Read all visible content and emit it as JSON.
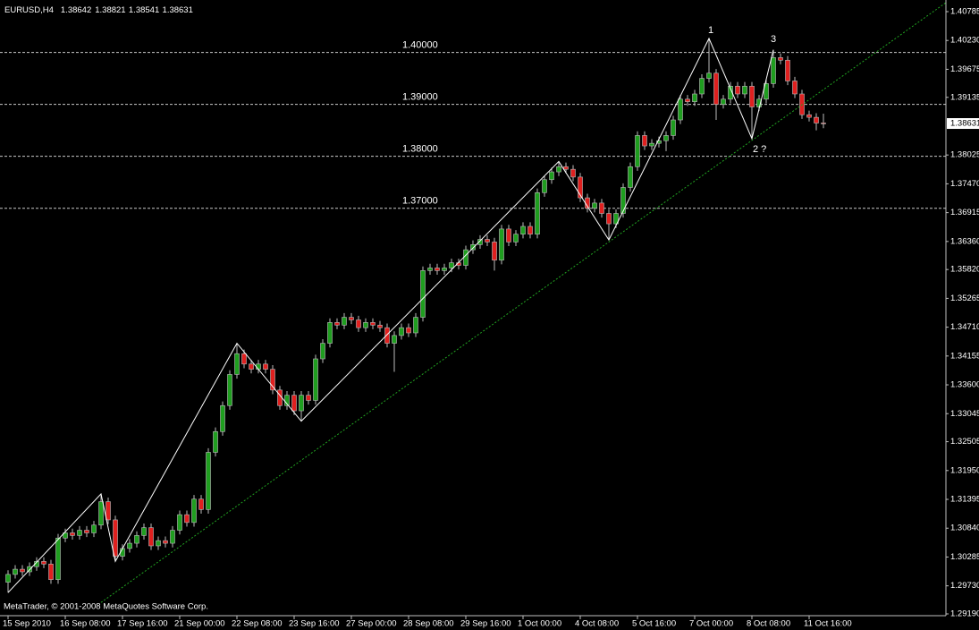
{
  "chart_data": {
    "type": "candlestick",
    "title": "EURUSD,H4",
    "categories": [
      "15 Sep 2010",
      null,
      null,
      null,
      null,
      null,
      null,
      null,
      "16 Sep 08:00",
      null,
      null,
      null,
      null,
      null,
      null,
      null,
      "17 Sep 16:00",
      null,
      null,
      null,
      null,
      null,
      null,
      null,
      "21 Sep 00:00",
      null,
      null,
      null,
      null,
      null,
      null,
      null,
      "22 Sep 08:00",
      null,
      null,
      null,
      null,
      null,
      null,
      null,
      "23 Sep 16:00",
      null,
      null,
      null,
      null,
      null,
      null,
      null,
      "27 Sep 00:00",
      null,
      null,
      null,
      null,
      null,
      null,
      null,
      "28 Sep 08:00",
      null,
      null,
      null,
      null,
      null,
      null,
      null,
      "29 Sep 16:00",
      null,
      null,
      null,
      null,
      null,
      null,
      null,
      "1 Oct 00:00",
      null,
      null,
      null,
      null,
      null,
      null,
      null,
      "4 Oct 08:00",
      null,
      null,
      null,
      null,
      null,
      null,
      null,
      "5 Oct 16:00",
      null,
      null,
      null,
      null,
      null,
      null,
      null,
      "7 Oct 00:00",
      null,
      null,
      null,
      null,
      null,
      null,
      null,
      "8 Oct 08:00",
      null,
      null,
      null,
      null,
      null,
      null,
      null,
      "11 Oct 16:00",
      null,
      null
    ],
    "open": [
      1.298,
      1.2995,
      1.3005,
      1.3,
      1.301,
      1.302,
      1.3015,
      1.2985,
      1.3065,
      1.3075,
      1.307,
      1.308,
      1.3075,
      1.309,
      1.3135,
      1.31,
      1.303,
      1.3045,
      1.3055,
      1.307,
      1.3085,
      1.305,
      1.306,
      1.3055,
      1.308,
      1.311,
      1.3095,
      1.314,
      1.312,
      1.323,
      1.327,
      1.332,
      1.338,
      1.342,
      1.34,
      1.339,
      1.34,
      1.339,
      1.335,
      1.332,
      1.334,
      1.331,
      1.334,
      1.333,
      1.341,
      1.344,
      1.348,
      1.3475,
      1.349,
      1.3485,
      1.347,
      1.348,
      1.3475,
      1.347,
      1.344,
      1.3455,
      1.347,
      1.346,
      1.349,
      1.358,
      1.3585,
      1.358,
      1.3585,
      1.3595,
      1.359,
      1.362,
      1.363,
      1.364,
      1.3635,
      1.36,
      1.366,
      1.3635,
      1.365,
      1.3665,
      1.365,
      1.373,
      1.3755,
      1.377,
      1.378,
      1.3775,
      1.376,
      1.372,
      1.37,
      1.371,
      1.369,
      1.367,
      1.369,
      1.374,
      1.378,
      1.384,
      1.382,
      1.3825,
      1.383,
      1.384,
      1.387,
      1.391,
      1.3905,
      1.392,
      1.395,
      1.396,
      1.39,
      1.391,
      1.3935,
      1.392,
      1.3935,
      1.3895,
      1.391,
      1.394,
      1.399,
      1.3985,
      1.3945,
      1.392,
      1.388,
      1.3875,
      1.38642
    ],
    "high": [
      1.3003,
      1.3013,
      1.3013,
      1.3018,
      1.3028,
      1.3028,
      1.3023,
      1.3073,
      1.3083,
      1.3083,
      1.3088,
      1.3088,
      1.3098,
      1.315,
      1.3143,
      1.3108,
      1.3053,
      1.3063,
      1.3078,
      1.3093,
      1.3093,
      1.3068,
      1.3068,
      1.3088,
      1.3118,
      1.3118,
      1.3148,
      1.3148,
      1.3238,
      1.3278,
      1.3328,
      1.3388,
      1.344,
      1.3428,
      1.3408,
      1.3408,
      1.3408,
      1.3398,
      1.3358,
      1.3348,
      1.3348,
      1.3348,
      1.3348,
      1.3418,
      1.3448,
      1.3488,
      1.3488,
      1.3498,
      1.3498,
      1.3493,
      1.3488,
      1.3488,
      1.3483,
      1.3478,
      1.3463,
      1.3478,
      1.3478,
      1.3498,
      1.3588,
      1.3593,
      1.3593,
      1.3593,
      1.3603,
      1.3603,
      1.3628,
      1.3638,
      1.3648,
      1.3648,
      1.3643,
      1.3668,
      1.3668,
      1.3658,
      1.3673,
      1.3673,
      1.3738,
      1.3763,
      1.3778,
      1.379,
      1.3788,
      1.3783,
      1.3768,
      1.3728,
      1.3718,
      1.3718,
      1.3698,
      1.3698,
      1.3748,
      1.3788,
      1.3848,
      1.3848,
      1.3833,
      1.3838,
      1.3848,
      1.3878,
      1.3918,
      1.3918,
      1.3928,
      1.3958,
      1.4027,
      1.3968,
      1.3918,
      1.3943,
      1.3943,
      1.3943,
      1.3943,
      1.3918,
      1.3948,
      1.4005,
      1.3998,
      1.3993,
      1.3953,
      1.3928,
      1.3888,
      1.3883,
      1.38821
    ],
    "low": [
      1.296,
      1.2987,
      1.2992,
      1.2992,
      1.3002,
      1.3007,
      1.2977,
      1.2977,
      1.3057,
      1.3062,
      1.3062,
      1.3067,
      1.3067,
      1.3082,
      1.3092,
      1.302,
      1.3022,
      1.3037,
      1.3047,
      1.3062,
      1.3042,
      1.3042,
      1.3047,
      1.3047,
      1.3072,
      1.3087,
      1.3087,
      1.3112,
      1.3112,
      1.3222,
      1.3262,
      1.3312,
      1.3372,
      1.3392,
      1.3382,
      1.3382,
      1.3382,
      1.3342,
      1.3312,
      1.3312,
      1.3302,
      1.329,
      1.3322,
      1.3322,
      1.3402,
      1.3432,
      1.3467,
      1.3467,
      1.3477,
      1.3462,
      1.3462,
      1.3467,
      1.3462,
      1.3432,
      1.3385,
      1.3447,
      1.3452,
      1.3452,
      1.3482,
      1.3572,
      1.3572,
      1.3572,
      1.3577,
      1.3582,
      1.3582,
      1.3612,
      1.3622,
      1.3627,
      1.358,
      1.3592,
      1.3627,
      1.3627,
      1.3642,
      1.3642,
      1.3642,
      1.3722,
      1.3747,
      1.3762,
      1.3767,
      1.3752,
      1.3712,
      1.3692,
      1.3692,
      1.3682,
      1.3639,
      1.3662,
      1.3682,
      1.3732,
      1.3772,
      1.3812,
      1.3812,
      1.3817,
      1.381,
      1.3832,
      1.3862,
      1.3897,
      1.3897,
      1.3912,
      1.3942,
      1.387,
      1.3892,
      1.3902,
      1.3912,
      1.3912,
      1.3834,
      1.3887,
      1.3902,
      1.3932,
      1.3977,
      1.3937,
      1.3912,
      1.3872,
      1.3867,
      1.385,
      1.38541
    ],
    "close": [
      1.2995,
      1.3005,
      1.3,
      1.301,
      1.302,
      1.3015,
      1.2985,
      1.3065,
      1.3075,
      1.307,
      1.308,
      1.3075,
      1.309,
      1.3135,
      1.31,
      1.303,
      1.3045,
      1.3055,
      1.307,
      1.3085,
      1.305,
      1.306,
      1.3055,
      1.308,
      1.311,
      1.3095,
      1.314,
      1.312,
      1.323,
      1.327,
      1.332,
      1.338,
      1.342,
      1.34,
      1.339,
      1.34,
      1.339,
      1.335,
      1.332,
      1.334,
      1.331,
      1.334,
      1.333,
      1.341,
      1.344,
      1.348,
      1.3475,
      1.349,
      1.3485,
      1.347,
      1.348,
      1.3475,
      1.347,
      1.344,
      1.3455,
      1.347,
      1.346,
      1.349,
      1.358,
      1.3585,
      1.358,
      1.3585,
      1.3595,
      1.359,
      1.362,
      1.363,
      1.364,
      1.3635,
      1.36,
      1.366,
      1.3635,
      1.365,
      1.3665,
      1.365,
      1.373,
      1.3755,
      1.377,
      1.378,
      1.3775,
      1.376,
      1.372,
      1.37,
      1.371,
      1.369,
      1.367,
      1.369,
      1.374,
      1.378,
      1.384,
      1.382,
      1.3825,
      1.383,
      1.384,
      1.387,
      1.391,
      1.3905,
      1.392,
      1.395,
      1.396,
      1.39,
      1.391,
      1.3935,
      1.392,
      1.3935,
      1.3895,
      1.391,
      1.394,
      1.399,
      1.3985,
      1.3945,
      1.392,
      1.388,
      1.3875,
      1.3864,
      1.38631
    ],
    "up_color": "#1f9e1f",
    "down_color": "#e0201f",
    "wick_color": "#bdbdbd",
    "ylim": [
      1.2919,
      1.40785
    ],
    "yticks": [
      1.40785,
      {
        "value": 1.4023,
        "label": "1.40230"
      },
      1.39675,
      1.39135,
      1.38025,
      {
        "value": 1.3747,
        "label": "1.37470"
      },
      1.36915,
      {
        "value": 1.3636,
        "label": "1.36360"
      },
      {
        "value": 1.3582,
        "label": "1.35820"
      },
      1.35265,
      {
        "value": 1.3471,
        "label": "1.34710"
      },
      1.34155,
      {
        "value": 1.336,
        "label": "1.33600"
      },
      1.33045,
      1.32505,
      {
        "value": 1.3195,
        "label": "1.31950"
      },
      1.31395,
      {
        "value": 1.3084,
        "label": "1.30840"
      },
      1.30285,
      {
        "value": 1.2973,
        "label": "1.29730"
      },
      {
        "value": 1.2919,
        "label": "1.29190"
      }
    ],
    "levels": [
      {
        "value": 1.4,
        "label": "1.40000"
      },
      {
        "value": 1.39,
        "label": "1.39000"
      },
      {
        "value": 1.38,
        "label": "1.38000"
      },
      {
        "value": 1.37,
        "label": "1.37000"
      }
    ],
    "zigzag": {
      "color": "#ffffff",
      "x": [
        0,
        13,
        15,
        32,
        41,
        77,
        84,
        98,
        104,
        107
      ],
      "y": [
        1.296,
        1.315,
        1.302,
        1.344,
        1.329,
        1.379,
        1.3639,
        1.4027,
        1.3834,
        1.4005
      ]
    },
    "trendline": {
      "color": "#21a321",
      "x": [
        13,
        80
      ],
      "y": [
        1.2941,
        1.3596
      ]
    },
    "annotations": [
      "1",
      "2 ?",
      "3"
    ],
    "copyright": "MetaTrader, © 2001-2008 MetaQuotes Software Corp."
  }
}
